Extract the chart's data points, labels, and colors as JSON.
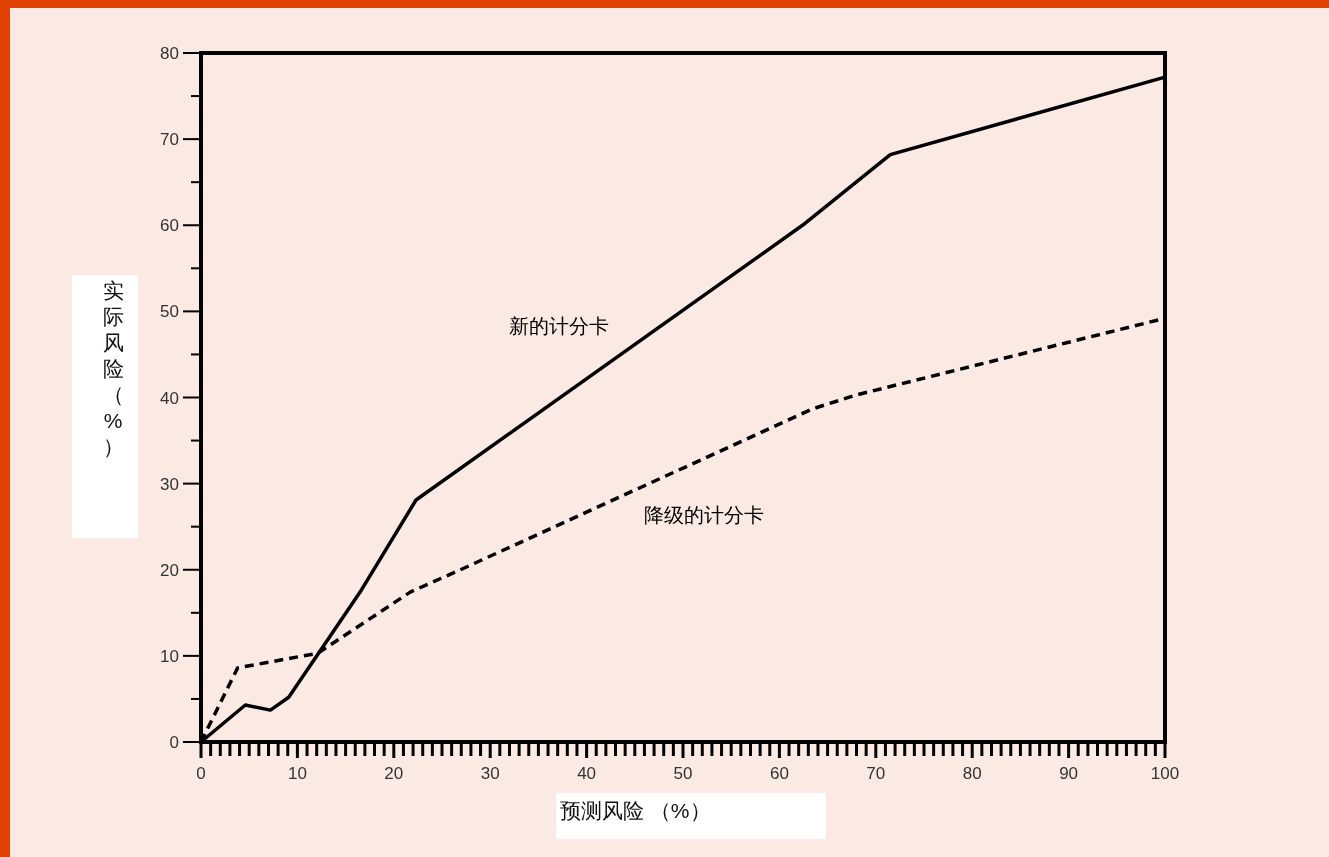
{
  "chart_data": {
    "type": "line",
    "xlabel": "预测风险 （%）",
    "ylabel": "实际风险（%）",
    "xlim": [
      0,
      100
    ],
    "ylim": [
      0,
      80
    ],
    "xticks": [
      0,
      10,
      20,
      30,
      40,
      50,
      60,
      70,
      80,
      90,
      100
    ],
    "yticks": [
      0,
      10,
      20,
      30,
      40,
      50,
      60,
      70,
      80
    ],
    "grid": false,
    "legend": false,
    "marker": "none",
    "series": [
      {
        "name": "新的计分卡",
        "color": "#000000",
        "line_style": "solid",
        "x": [
          0,
          4.6,
          7.2,
          9.1,
          16.5,
          22.3,
          62.4,
          71.5,
          100
        ],
        "values": [
          0,
          4.3,
          3.7,
          5.2,
          17.4,
          28.1,
          60,
          68.2,
          77.2
        ]
      },
      {
        "name": "降级的计分卡",
        "color": "#000000",
        "line_style": "dashed",
        "x": [
          0,
          3.8,
          12.1,
          21.7,
          26.9,
          63.5,
          68,
          100
        ],
        "values": [
          0,
          8.6,
          10.3,
          17.4,
          20,
          38.7,
          40.3,
          49.2
        ]
      }
    ]
  }
}
